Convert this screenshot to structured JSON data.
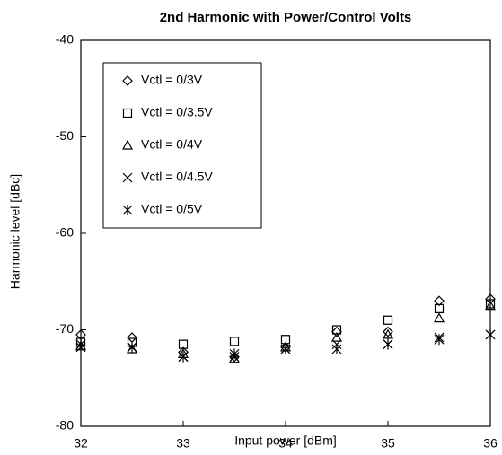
{
  "chart_data": {
    "type": "scatter",
    "title": "2nd Harmonic with Power/Control Volts",
    "x_label": "Input power [dBm]",
    "y_label": "Harmonic level [dBc]",
    "x": [
      32,
      32.5,
      33,
      33.5,
      34,
      34.5,
      35,
      35.5,
      36
    ],
    "series": [
      {
        "name": "Vctl = 0/3V",
        "color": "#000000",
        "marker": "diamond",
        "values": [
          -70.5,
          -70.8,
          -72.3,
          -72.8,
          -71.8,
          -70.2,
          -70.2,
          -67,
          -66.8
        ]
      },
      {
        "name": "Vctl = 0/3.5V",
        "color": "#000000",
        "marker": "square",
        "values": [
          -71.3,
          -71.3,
          -71.5,
          -71.2,
          -71,
          -70,
          -69,
          -67.8,
          -67.3
        ]
      },
      {
        "name": "Vctl = 0/4V",
        "color": "#000000",
        "marker": "triangle",
        "values": [
          -71.7,
          -72,
          -72.5,
          -73,
          -71.8,
          -70.8,
          -70.5,
          -68.8,
          -67.5
        ]
      },
      {
        "name": "Vctl = 0/4.5V",
        "color": "#000000",
        "marker": "x",
        "values": [
          -71.8,
          -71.8,
          -72.8,
          -72.8,
          -72,
          -71.5,
          -71.5,
          -70.8,
          -70.5
        ]
      },
      {
        "name": "Vctl = 0/5V",
        "color": "#000000",
        "marker": "asterisk",
        "values": [
          -71.5,
          -71.8,
          -72.8,
          -72.5,
          -72,
          -72,
          -71.5,
          -71,
          -70.5
        ]
      }
    ],
    "xlim": [
      32,
      36
    ],
    "ylim": [
      -80,
      -40
    ],
    "xticks": [
      32,
      33,
      34,
      35,
      36
    ],
    "yticks": [
      -80,
      -70,
      -60,
      -50,
      -40
    ],
    "grid": false,
    "legend": "upper left"
  }
}
